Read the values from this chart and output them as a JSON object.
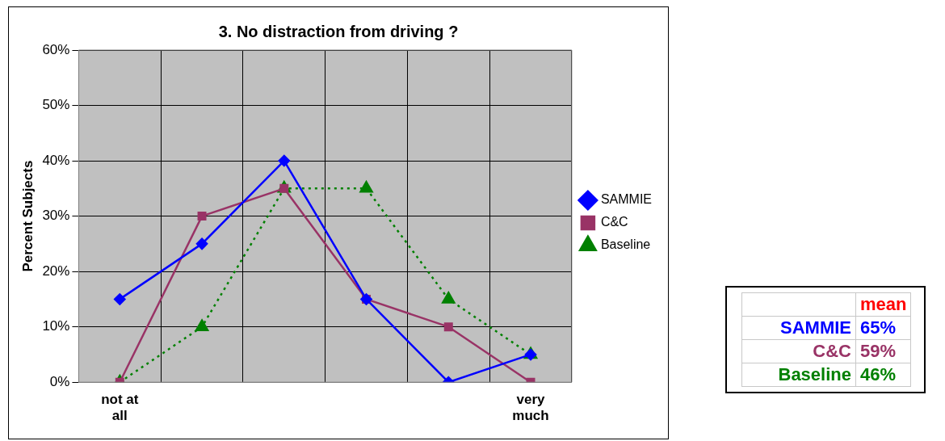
{
  "chart_data": [
    {
      "type": "line",
      "title": "3. No distraction from driving ?",
      "ylabel": "Percent Subjects",
      "categories": [
        "not at all",
        null,
        null,
        null,
        null,
        "very much"
      ],
      "series": [
        {
          "name": "SAMMIE",
          "color": "#0000ff",
          "values": [
            15,
            25,
            40,
            15,
            0,
            5
          ],
          "marker": "diamond",
          "line_style": "solid"
        },
        {
          "name": "C&C",
          "color": "#993366",
          "values": [
            0,
            30,
            35,
            15,
            10,
            0
          ],
          "marker": "square",
          "line_style": "solid"
        },
        {
          "name": "Baseline",
          "color": "#008000",
          "values": [
            0,
            10,
            35,
            35,
            15,
            5
          ],
          "marker": "triangle",
          "line_style": "dotted"
        }
      ],
      "ylim": [
        0,
        60
      ],
      "yticks": [
        {
          "value": 0,
          "label": "0%"
        },
        {
          "value": 10,
          "label": "10%"
        },
        {
          "value": 20,
          "label": "20%"
        },
        {
          "value": 30,
          "label": "30%"
        },
        {
          "value": 40,
          "label": "40%"
        },
        {
          "value": 50,
          "label": "50%"
        },
        {
          "value": 60,
          "label": "60%"
        }
      ],
      "grid": true,
      "legend": "right"
    },
    {
      "type": "other",
      "annotations": [
        "mean",
        "SAMMIE",
        "65%",
        "C&C",
        "59%",
        "Baseline",
        "46%"
      ]
    }
  ]
}
